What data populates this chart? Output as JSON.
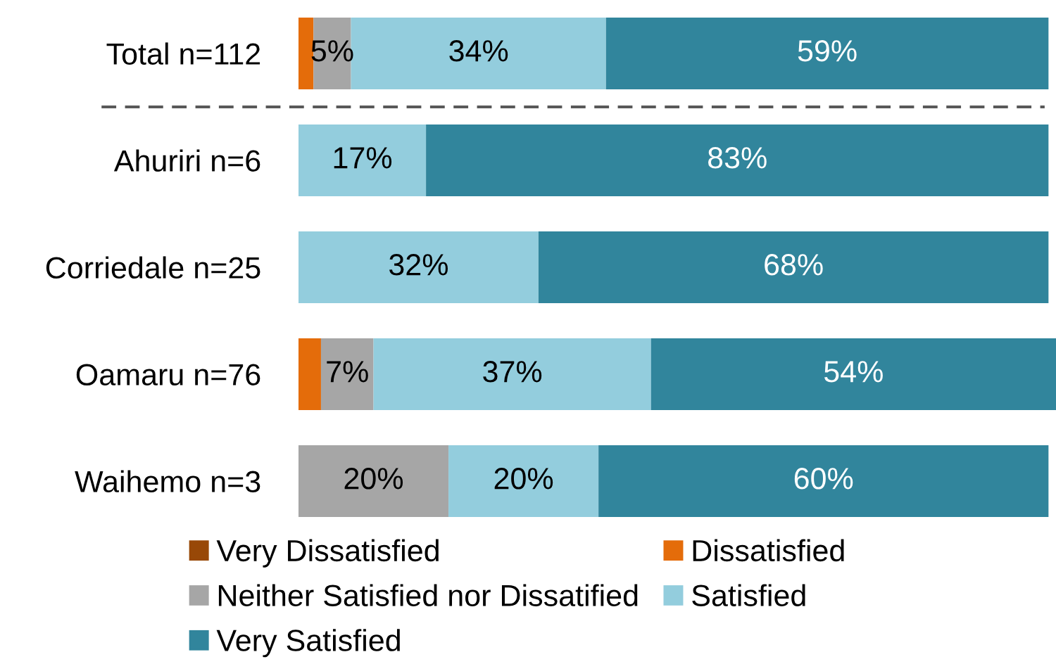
{
  "chart_data": {
    "type": "bar",
    "orientation": "horizontal",
    "stacked": true,
    "categories": [
      "Total n=112",
      "Ahuriri n=6",
      "Corriedale n=25",
      "Oamaru n=76",
      "Waihemo n=3"
    ],
    "series": [
      {
        "name": "Very Dissatisfied",
        "color": "#984807",
        "values": [
          0,
          0,
          0,
          0,
          0
        ],
        "value_labels": [
          null,
          null,
          null,
          null,
          null
        ]
      },
      {
        "name": "Dissatisfied",
        "color": "#e46c0a",
        "values": [
          2,
          0,
          0,
          3,
          0
        ],
        "value_labels": [
          null,
          null,
          null,
          null,
          null
        ]
      },
      {
        "name": "Neither Satisfied nor Dissatified",
        "color": "#a6a6a6",
        "values": [
          5,
          0,
          0,
          7,
          20
        ],
        "value_labels": [
          "5%",
          null,
          null,
          "7%",
          "20%"
        ]
      },
      {
        "name": "Satisfied",
        "color": "#93cddd",
        "values": [
          34,
          17,
          32,
          37,
          20
        ],
        "value_labels": [
          "34%",
          "17%",
          "32%",
          "37%",
          "20%"
        ]
      },
      {
        "name": "Very Satisfied",
        "color": "#31859c",
        "values": [
          59,
          83,
          68,
          54,
          60
        ],
        "value_labels": [
          "59%",
          "83%",
          "68%",
          "54%",
          "60%"
        ]
      }
    ],
    "xlim": [
      0,
      101
    ],
    "tick_labels": "y",
    "grid": false,
    "legend": "bottom"
  }
}
